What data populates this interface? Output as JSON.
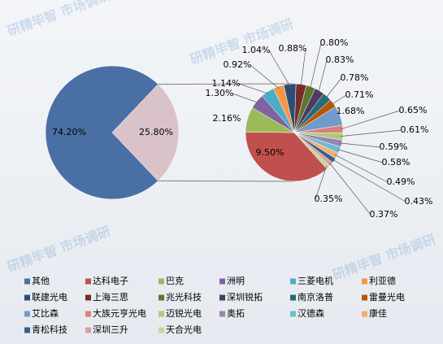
{
  "chart_data": {
    "type": "pie_of_pie",
    "categories": [
      "其他",
      "达科电子",
      "巴克",
      "洲明",
      "三菱电机",
      "利亚德",
      "联建光电",
      "上海三思",
      "兆光科技",
      "深圳锐拓",
      "南京洛普",
      "雷曼光电",
      "艾比森",
      "大族元亨光电",
      "迈锐光电",
      "奥拓",
      "汉德森",
      "康佳",
      "青松科技",
      "深圳三升",
      "天合光电"
    ],
    "values": [
      74.2,
      9.5,
      2.16,
      1.3,
      1.14,
      0.92,
      1.04,
      0.88,
      0.8,
      0.83,
      0.78,
      0.71,
      1.68,
      0.65,
      0.61,
      0.59,
      0.58,
      0.49,
      0.43,
      0.37,
      0.35
    ],
    "value_labels": [
      "74.20%",
      "9.50%",
      "2.16%",
      "1.30%",
      "1.14%",
      "0.92%",
      "1.04%",
      "0.88%",
      "0.80%",
      "0.83%",
      "0.78%",
      "0.71%",
      "1.68%",
      "0.65%",
      "0.61%",
      "0.59%",
      "0.58%",
      "0.49%",
      "0.43%",
      "0.37%",
      "0.35%"
    ],
    "colors": [
      "#4a6fa5",
      "#c0504d",
      "#9bbb59",
      "#8064a2",
      "#4bacc6",
      "#f79646",
      "#2c4d75",
      "#772c2a",
      "#5f7530",
      "#4d3b62",
      "#276a7c",
      "#b65708",
      "#729aca",
      "#d9807e",
      "#afc97a",
      "#9983b5",
      "#6fbdd1",
      "#f9ab6b",
      "#3a5e8c",
      "#d6a3a2",
      "#c4d79b"
    ],
    "other_total": 25.8,
    "other_label": "25.80%",
    "other_color": "#d9c3c8",
    "watermark": "研精毕智 市场调研"
  }
}
